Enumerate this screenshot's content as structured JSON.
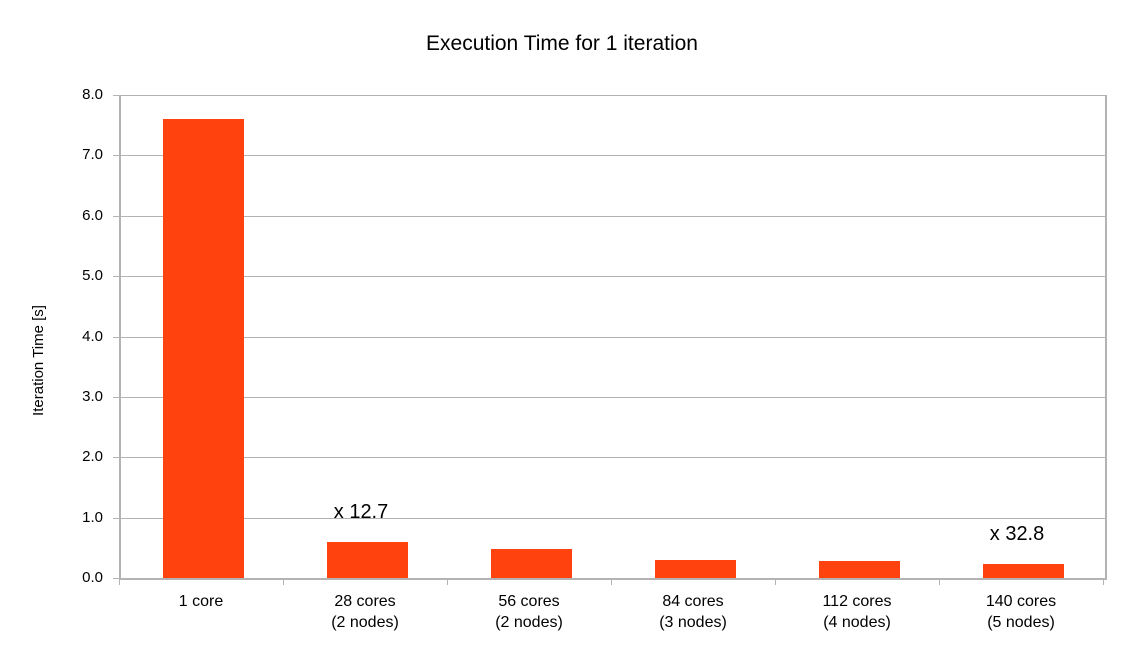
{
  "chart_data": {
    "type": "bar",
    "title": "Execution Time for 1 iteration",
    "xlabel": "",
    "ylabel": "Iteration Time [s]",
    "ylim": [
      0,
      8
    ],
    "ytick_step": 1.0,
    "ytick_labels": [
      "0.0",
      "1.0",
      "2.0",
      "3.0",
      "4.0",
      "5.0",
      "6.0",
      "7.0",
      "8.0"
    ],
    "categories": [
      "1 core",
      "28 cores\n(2 nodes)",
      "56 cores\n(2 nodes)",
      "84 cores\n(3 nodes)",
      "112 cores\n(4 nodes)",
      "140 cores\n(5 nodes)"
    ],
    "values": [
      7.6,
      0.6,
      0.48,
      0.3,
      0.28,
      0.23
    ],
    "annotations": [
      {
        "category_index": 1,
        "text": "x 12.7"
      },
      {
        "category_index": 5,
        "text": "x 32.8"
      }
    ],
    "grid": true,
    "legend": "none",
    "bar_color": "#ff420e",
    "grid_color": "#b3b3b3",
    "background": "#ffffff",
    "text_color": "#000000"
  }
}
